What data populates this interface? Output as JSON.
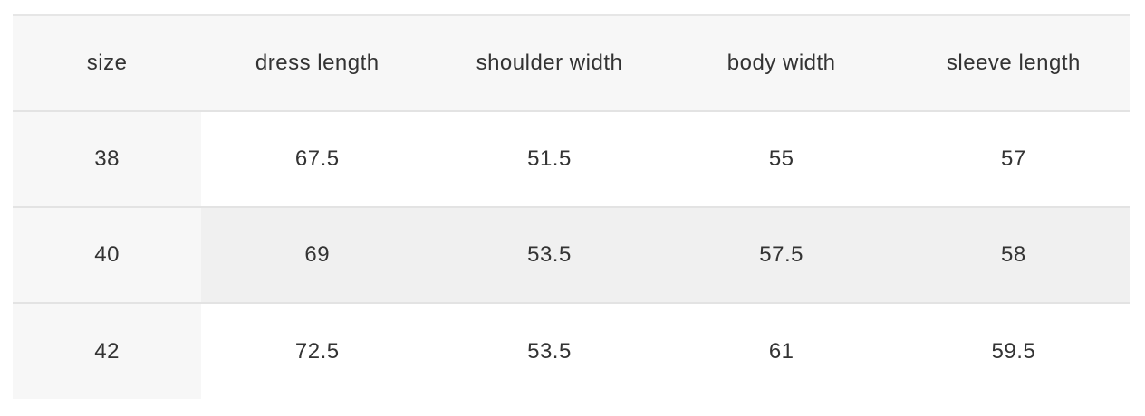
{
  "table": {
    "headers": [
      "size",
      "dress length",
      "shoulder width",
      "body width",
      "sleeve length"
    ],
    "rows": [
      [
        "38",
        "67.5",
        "51.5",
        "55",
        "57"
      ],
      [
        "40",
        "69",
        "53.5",
        "57.5",
        "58"
      ],
      [
        "42",
        "72.5",
        "53.5",
        "61",
        "59.5"
      ]
    ]
  }
}
